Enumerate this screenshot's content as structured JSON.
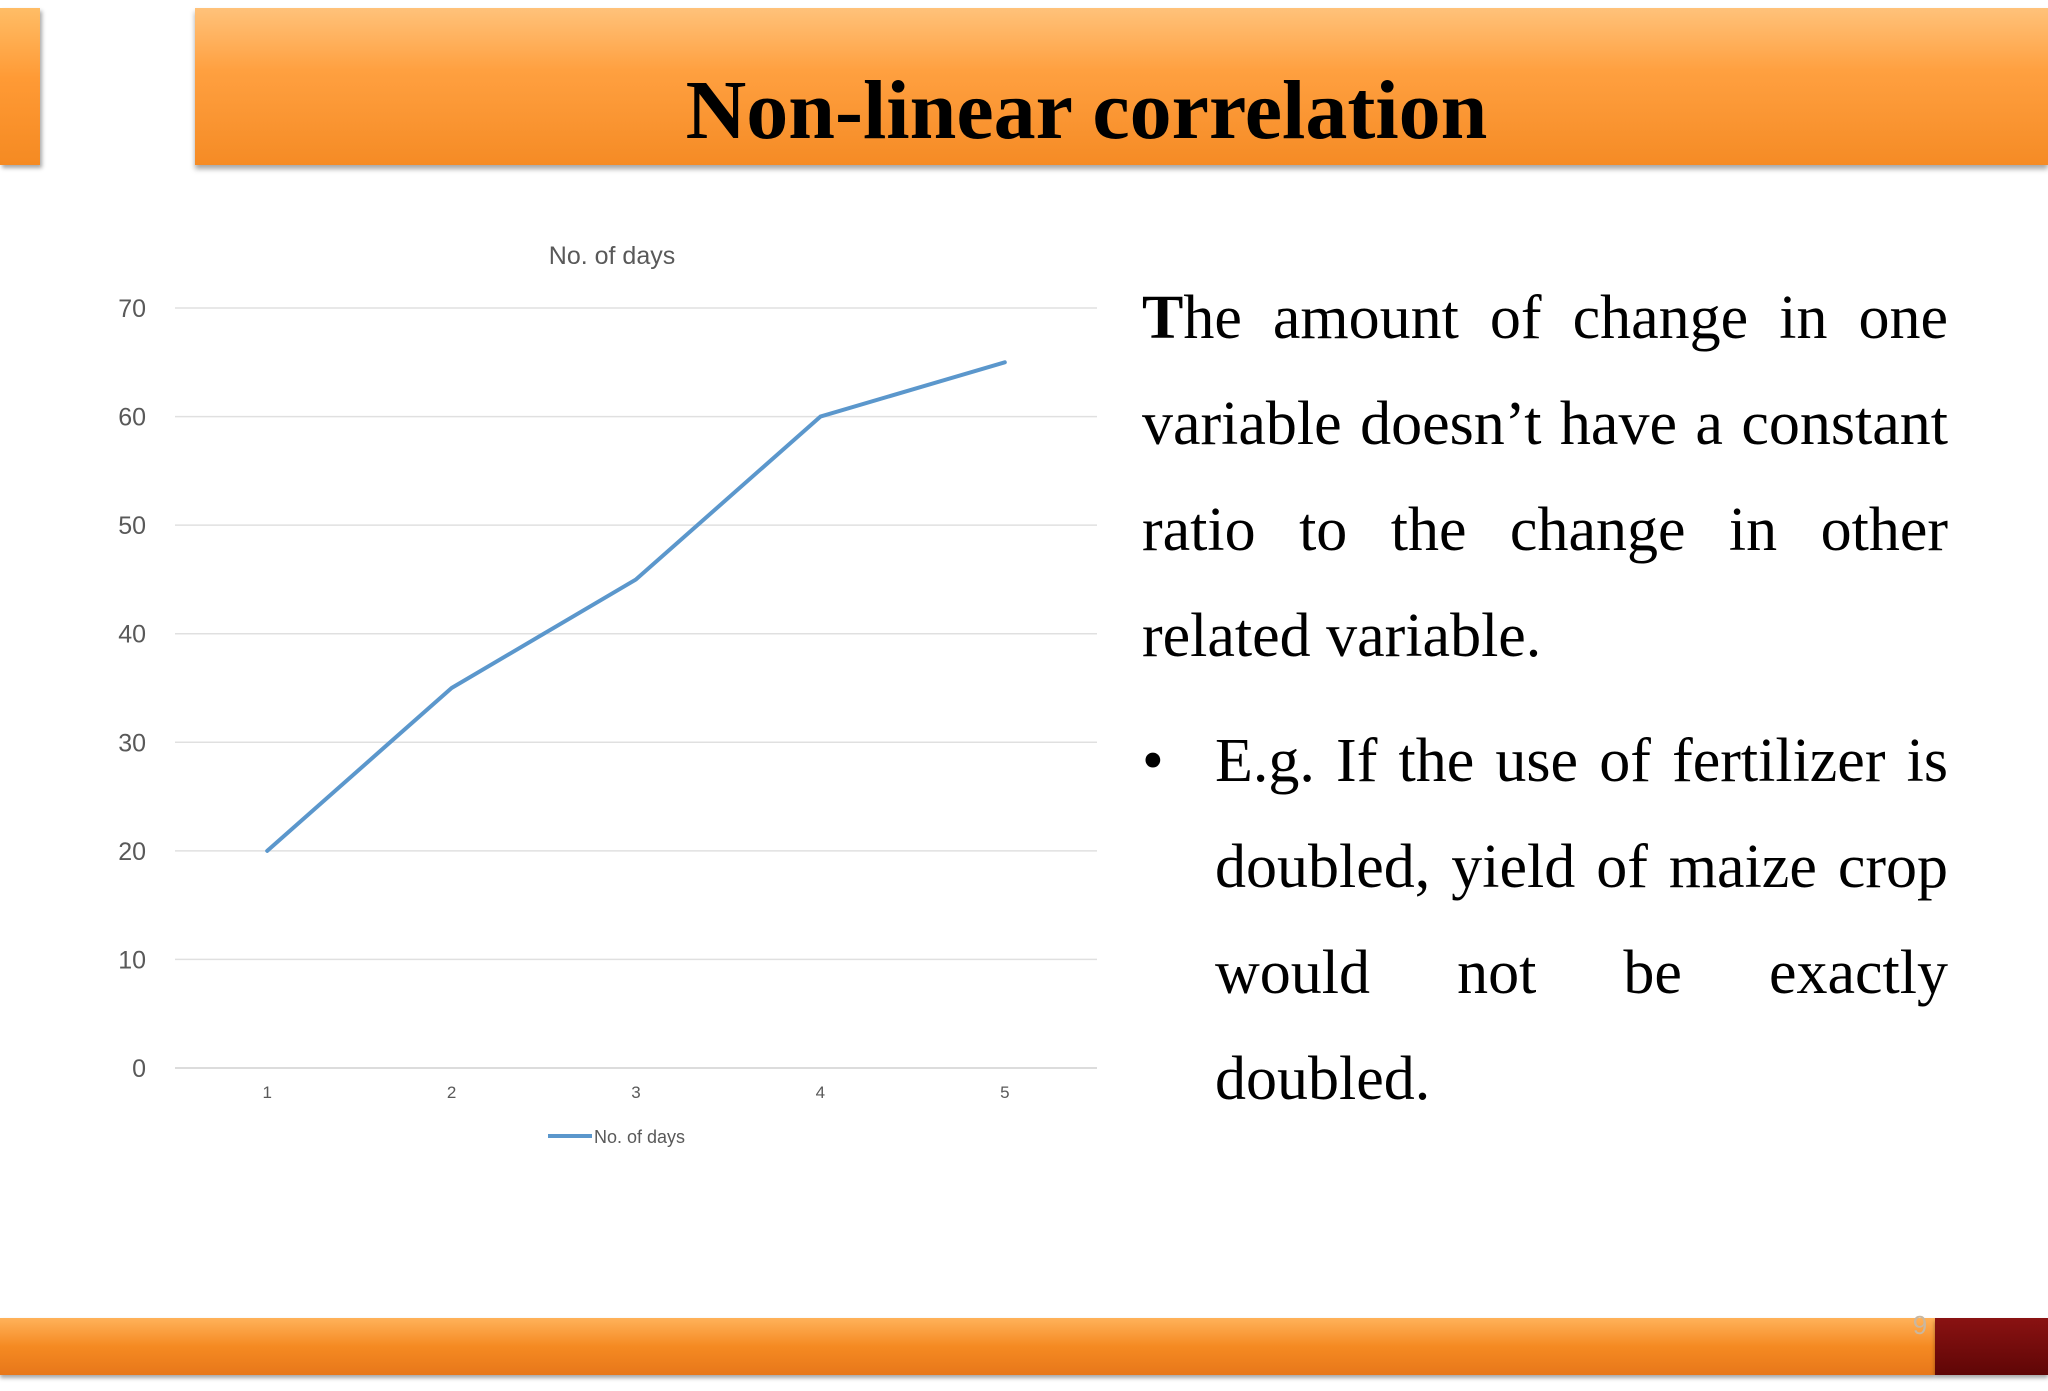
{
  "slide": {
    "title": "Non-linear correlation",
    "page_number": "9",
    "colors": {
      "title_bar": "#f79433",
      "footer_bar": "#f58a22",
      "footer_dark": "#6b0a0a",
      "series_line": "#5b97cc"
    }
  },
  "text": {
    "dropcap": "T",
    "paragraph_rest": "he amount of change in one variable doesn’t have a constant ratio to the change in other related variable.",
    "bullet_symbol": "•",
    "bullet": "E.g. If the use of fertilizer is doubled, yield of maize crop would not be exactly doubled."
  },
  "chart_data": {
    "type": "line",
    "title": "No. of days",
    "categories": [
      "1",
      "2",
      "3",
      "4",
      "5"
    ],
    "series": [
      {
        "name": "No. of days",
        "values": [
          20,
          35,
          45,
          60,
          65
        ],
        "color": "#5b97cc"
      }
    ],
    "yticks": [
      "0",
      "10",
      "20",
      "30",
      "40",
      "50",
      "60",
      "70"
    ],
    "ylim": [
      0,
      70
    ],
    "grid": true,
    "legend": "bottom"
  }
}
